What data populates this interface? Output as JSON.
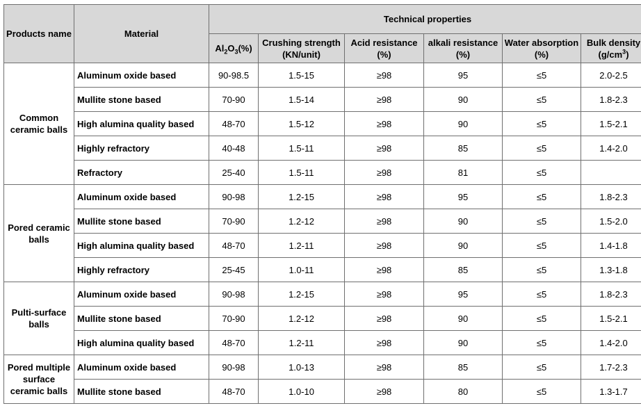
{
  "header": {
    "products_name": "Products name",
    "material": "Material",
    "technical_properties": "Technical properties",
    "columns": {
      "al2o3_base": "Al",
      "al2o3_sub1": "2",
      "al2o3_mid": "O",
      "al2o3_sub2": "3",
      "al2o3_unit": "(%)",
      "crushing": "Crushing strength (KN/unit)",
      "acid": "Acid resistance  (%)",
      "alkali": "alkali resistance (%)",
      "water": "Water absorption (%)",
      "bulk_base": "Bulk density (g/cm",
      "bulk_sup": "3",
      "bulk_end": ")"
    }
  },
  "groups": [
    {
      "product": "Common ceramic balls",
      "rows": [
        {
          "material": "Aluminum oxide based",
          "al2o3": "90-98.5",
          "crushing": "1.5-15",
          "acid": "≥98",
          "alkali": "95",
          "water": "≤5",
          "bulk": "2.0-2.5"
        },
        {
          "material": "Mullite stone based",
          "al2o3": "70-90",
          "crushing": "1.5-14",
          "acid": "≥98",
          "alkali": "90",
          "water": "≤5",
          "bulk": "1.8-2.3"
        },
        {
          "material": "High alumina quality based",
          "al2o3": "48-70",
          "crushing": "1.5-12",
          "acid": "≥98",
          "alkali": "90",
          "water": "≤5",
          "bulk": "1.5-2.1"
        },
        {
          "material": "Highly refractory",
          "al2o3": "40-48",
          "crushing": "1.5-11",
          "acid": "≥98",
          "alkali": "85",
          "water": "≤5",
          "bulk": "1.4-2.0"
        },
        {
          "material": "Refractory",
          "al2o3": "25-40",
          "crushing": "1.5-11",
          "acid": "≥98",
          "alkali": "81",
          "water": "≤5",
          "bulk": ""
        }
      ]
    },
    {
      "product": "Pored ceramic balls",
      "rows": [
        {
          "material": "Aluminum oxide based",
          "al2o3": "90-98",
          "crushing": "1.2-15",
          "acid": "≥98",
          "alkali": "95",
          "water": "≤5",
          "bulk": "1.8-2.3"
        },
        {
          "material": "Mullite stone based",
          "al2o3": "70-90",
          "crushing": "1.2-12",
          "acid": "≥98",
          "alkali": "90",
          "water": "≤5",
          "bulk": "1.5-2.0"
        },
        {
          "material": "High alumina quality based",
          "al2o3": "48-70",
          "crushing": "1.2-11",
          "acid": "≥98",
          "alkali": "90",
          "water": "≤5",
          "bulk": "1.4-1.8"
        },
        {
          "material": "Highly refractory",
          "al2o3": "25-45",
          "crushing": "1.0-11",
          "acid": "≥98",
          "alkali": "85",
          "water": "≤5",
          "bulk": "1.3-1.8"
        }
      ]
    },
    {
      "product": "Pulti-surface balls",
      "rows": [
        {
          "material": "Aluminum oxide based",
          "al2o3": "90-98",
          "crushing": "1.2-15",
          "acid": "≥98",
          "alkali": "95",
          "water": "≤5",
          "bulk": "1.8-2.3"
        },
        {
          "material": "Mullite stone based",
          "al2o3": "70-90",
          "crushing": "1.2-12",
          "acid": "≥98",
          "alkali": "90",
          "water": "≤5",
          "bulk": "1.5-2.1"
        },
        {
          "material": "High alumina quality based",
          "al2o3": "48-70",
          "crushing": "1.2-11",
          "acid": "≥98",
          "alkali": "90",
          "water": "≤5",
          "bulk": "1.4-2.0"
        }
      ]
    },
    {
      "product": "Pored multiple surface ceramic balls",
      "rows": [
        {
          "material": "Aluminum oxide based",
          "al2o3": "90-98",
          "crushing": "1.0-13",
          "acid": "≥98",
          "alkali": "85",
          "water": "≤5",
          "bulk": "1.7-2.3"
        },
        {
          "material": "Mullite stone based",
          "al2o3": "48-70",
          "crushing": "1.0-10",
          "acid": "≥98",
          "alkali": "80",
          "water": "≤5",
          "bulk": "1.3-1.7"
        }
      ]
    }
  ]
}
